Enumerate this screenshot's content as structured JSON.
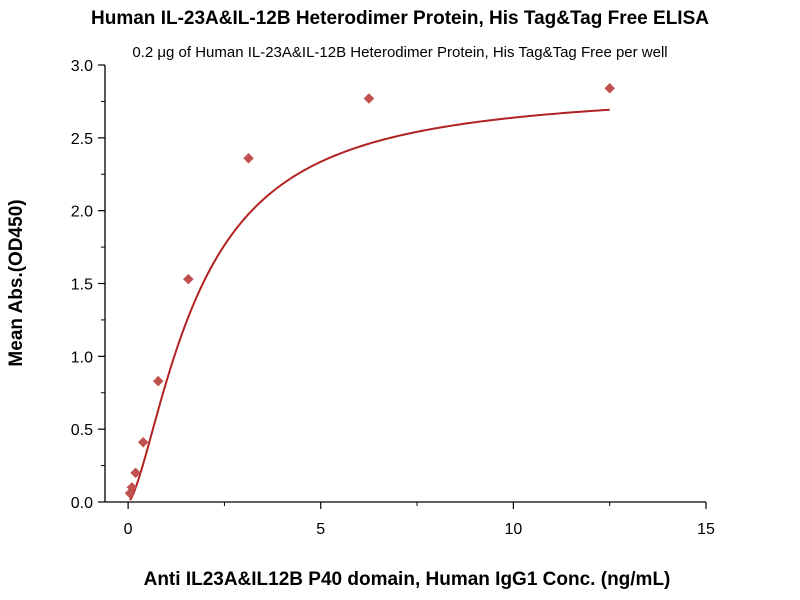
{
  "chart_data": {
    "type": "scatter",
    "title": "Human IL-23A&IL-12B Heterodimer Protein, His Tag&Tag Free ELISA",
    "subtitle": "0.2 μg of Human IL-23A&IL-12B Heterodimer Protein, His Tag&Tag Free per well",
    "xlabel": "Anti IL23A&IL12B P40 domain, Human IgG1 Conc. (ng/mL)",
    "ylabel": "Mean Abs.(OD450)",
    "xlim": [
      -0.6,
      15
    ],
    "ylim": [
      0,
      3.0
    ],
    "x_ticks": [
      0,
      5,
      10,
      15
    ],
    "x_tick_labels": [
      "0",
      "5",
      "10",
      "15"
    ],
    "y_ticks": [
      0,
      0.5,
      1.0,
      1.5,
      2.0,
      2.5,
      3.0
    ],
    "y_tick_labels": [
      "0.0",
      "0.5",
      "1.0",
      "1.5",
      "2.0",
      "2.5",
      "3.0"
    ],
    "grid": false,
    "series": [
      {
        "marker": "diamond",
        "color": "#c0504d",
        "x": [
          0.0488,
          0.0977,
          0.195,
          0.391,
          0.781,
          1.5625,
          3.125,
          6.25,
          12.5
        ],
        "y": [
          0.06,
          0.1,
          0.2,
          0.41,
          0.83,
          1.53,
          2.36,
          2.77,
          2.84
        ]
      }
    ],
    "fit_curve": {
      "color": "#b22222",
      "model": "4PL",
      "bottom": 0.0,
      "top": 2.84,
      "ec50": 1.8,
      "hill": 1.5
    }
  }
}
